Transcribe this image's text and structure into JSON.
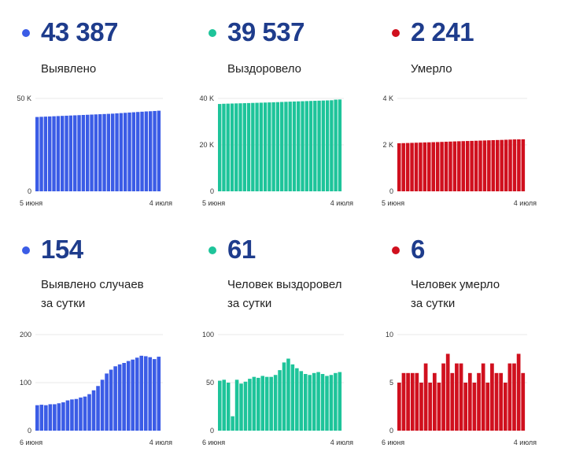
{
  "cards": [
    {
      "id": "confirmed-total",
      "value": "43 387",
      "label": "Выявлено",
      "label2": "",
      "color": "#3b5ce6"
    },
    {
      "id": "recovered-total",
      "value": "39 537",
      "label": "Выздоровело",
      "label2": "",
      "color": "#1ec49a"
    },
    {
      "id": "deaths-total",
      "value": "2 241",
      "label": "Умерло",
      "label2": "",
      "color": "#d0101e"
    },
    {
      "id": "confirmed-daily",
      "value": "154",
      "label": "Выявлено случаев",
      "label2": "за сутки",
      "color": "#3b5ce6"
    },
    {
      "id": "recovered-daily",
      "value": "61",
      "label": "Человек выздоровел",
      "label2": "за сутки",
      "color": "#1ec49a"
    },
    {
      "id": "deaths-daily",
      "value": "6",
      "label": "Человек умерло",
      "label2": "за сутки",
      "color": "#d0101e"
    }
  ],
  "chart_data": [
    {
      "type": "bar",
      "title": "Выявлено",
      "xlabel": "",
      "ylabel": "",
      "ylim": [
        0,
        50000
      ],
      "yticks": [
        0,
        50000
      ],
      "ytick_labels": [
        "0",
        "50 K"
      ],
      "x_start_label": "5 июня",
      "x_end_label": "4 июля",
      "color": "#3b5ce6",
      "values": [
        40000,
        40100,
        40200,
        40300,
        40400,
        40500,
        40600,
        40700,
        40800,
        40900,
        41000,
        41100,
        41200,
        41300,
        41400,
        41500,
        41600,
        41700,
        41800,
        41950,
        42100,
        42250,
        42400,
        42550,
        42700,
        42850,
        43000,
        43100,
        43233,
        43387
      ]
    },
    {
      "type": "bar",
      "title": "Выздоровело",
      "xlabel": "",
      "ylabel": "",
      "ylim": [
        0,
        40000
      ],
      "yticks": [
        0,
        20000,
        40000
      ],
      "ytick_labels": [
        "0",
        "20 K",
        "40 K"
      ],
      "x_start_label": "5 июня",
      "x_end_label": "4 июля",
      "color": "#1ec49a",
      "values": [
        37600,
        37700,
        37750,
        37800,
        37850,
        37900,
        37950,
        38000,
        38060,
        38110,
        38160,
        38220,
        38280,
        38340,
        38400,
        38470,
        38540,
        38610,
        38670,
        38730,
        38790,
        38850,
        38910,
        38970,
        39030,
        39090,
        39150,
        39210,
        39476,
        39537
      ]
    },
    {
      "type": "bar",
      "title": "Умерло",
      "xlabel": "",
      "ylabel": "",
      "ylim": [
        0,
        4000
      ],
      "yticks": [
        0,
        2000,
        4000
      ],
      "ytick_labels": [
        "0",
        "2 K",
        "4 K"
      ],
      "x_start_label": "5 июня",
      "x_end_label": "4 июля",
      "color": "#d0101e",
      "values": [
        2070,
        2075,
        2081,
        2087,
        2093,
        2098,
        2105,
        2110,
        2116,
        2121,
        2128,
        2136,
        2142,
        2149,
        2156,
        2161,
        2167,
        2172,
        2178,
        2185,
        2190,
        2197,
        2203,
        2209,
        2214,
        2221,
        2228,
        2235,
        2237,
        2241
      ]
    },
    {
      "type": "bar",
      "title": "Выявлено случаев за сутки",
      "xlabel": "",
      "ylabel": "",
      "ylim": [
        0,
        200
      ],
      "yticks": [
        0,
        100,
        200
      ],
      "ytick_labels": [
        "0",
        "100",
        "200"
      ],
      "x_start_label": "6 июня",
      "x_end_label": "4 июля",
      "color": "#3b5ce6",
      "values": [
        53,
        54,
        53,
        55,
        55,
        57,
        59,
        63,
        65,
        66,
        69,
        71,
        76,
        84,
        93,
        106,
        119,
        127,
        134,
        138,
        141,
        145,
        148,
        152,
        156,
        155,
        153,
        149,
        154
      ]
    },
    {
      "type": "bar",
      "title": "Человек выздоровел за сутки",
      "xlabel": "",
      "ylabel": "",
      "ylim": [
        0,
        100
      ],
      "yticks": [
        0,
        50,
        100
      ],
      "ytick_labels": [
        "0",
        "50",
        "100"
      ],
      "x_start_label": "6 июня",
      "x_end_label": "4 июля",
      "color": "#1ec49a",
      "values": [
        52,
        53,
        50,
        15,
        53,
        49,
        51,
        54,
        56,
        55,
        57,
        56,
        56,
        58,
        63,
        71,
        75,
        69,
        65,
        62,
        59,
        58,
        60,
        61,
        59,
        57,
        58,
        60,
        61
      ]
    },
    {
      "type": "bar",
      "title": "Человек умерло за сутки",
      "xlabel": "",
      "ylabel": "",
      "ylim": [
        0,
        10
      ],
      "yticks": [
        0,
        5,
        10
      ],
      "ytick_labels": [
        "0",
        "5",
        "10"
      ],
      "x_start_label": "6 июня",
      "x_end_label": "4 июля",
      "color": "#d0101e",
      "values": [
        5,
        6,
        6,
        6,
        6,
        5,
        7,
        5,
        6,
        5,
        7,
        8,
        6,
        7,
        7,
        5,
        6,
        5,
        6,
        7,
        5,
        7,
        6,
        6,
        5,
        7,
        7,
        8,
        6
      ]
    }
  ]
}
